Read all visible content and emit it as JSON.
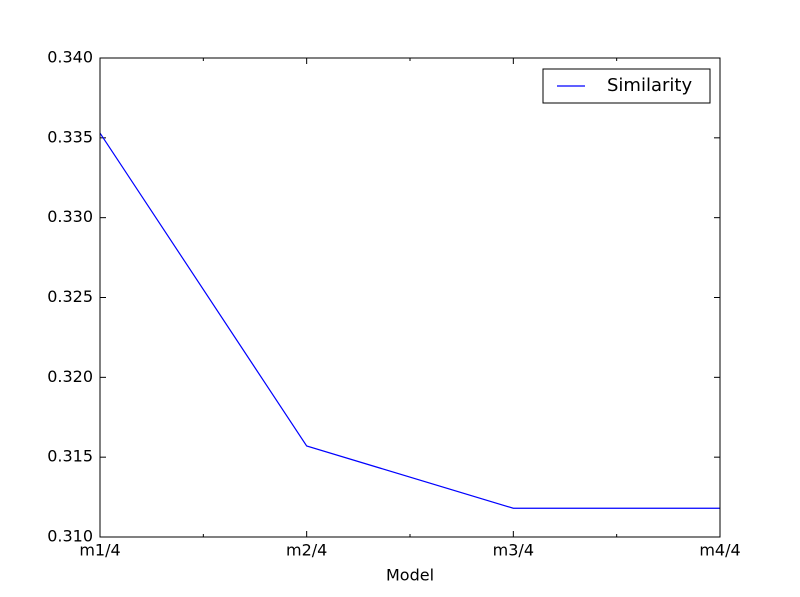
{
  "chart_data": {
    "type": "line",
    "xlabel": "Model",
    "categories": [
      "m1/4",
      "m2/4",
      "m3/4",
      "m4/4"
    ],
    "series": [
      {
        "name": "Similarity",
        "color": "#0000ff",
        "values": [
          0.3353,
          0.3157,
          0.3118,
          0.3118
        ]
      }
    ],
    "ylim": [
      0.31,
      0.34
    ],
    "yticks": [
      {
        "value": 0.31,
        "label": "0.310"
      },
      {
        "value": 0.315,
        "label": "0.315"
      },
      {
        "value": 0.32,
        "label": "0.320"
      },
      {
        "value": 0.325,
        "label": "0.325"
      },
      {
        "value": 0.33,
        "label": "0.330"
      },
      {
        "value": 0.335,
        "label": "0.335"
      },
      {
        "value": 0.34,
        "label": "0.340"
      }
    ],
    "legend": "upper right",
    "grid": false
  }
}
